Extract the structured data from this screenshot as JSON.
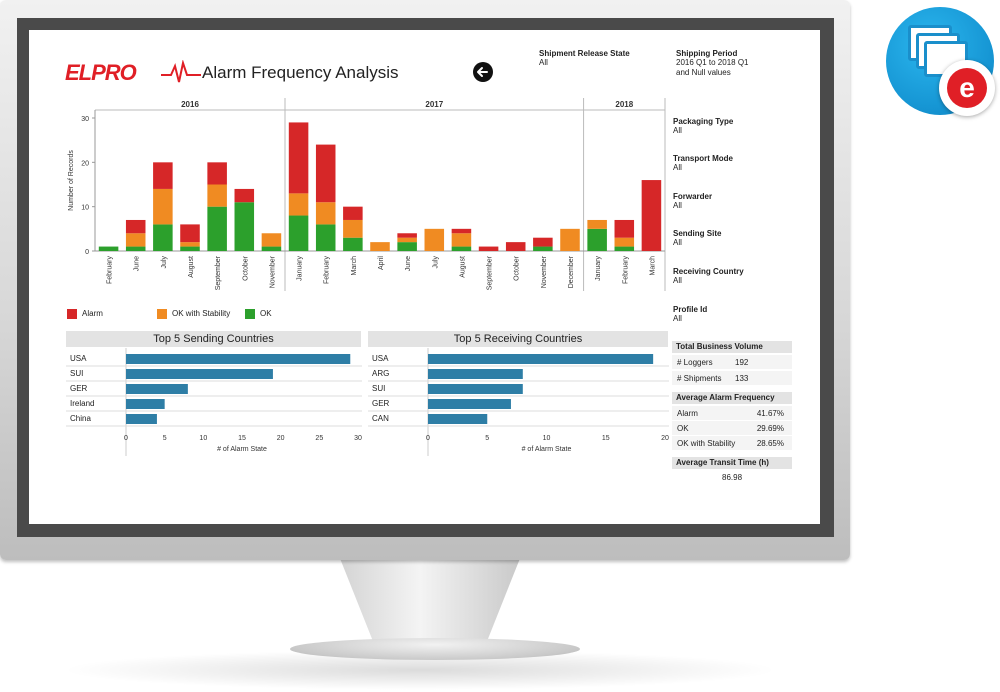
{
  "header": {
    "logo_text": "ELPRO",
    "title": "Alarm Frequency Analysis"
  },
  "filters_top": [
    {
      "label": "Shipment Release State",
      "value": "All"
    },
    {
      "label": "Shipping Period",
      "value": "2016 Q1 to 2018 Q1 and Null values"
    }
  ],
  "filters_side": [
    {
      "label": "Packaging Type",
      "value": "All"
    },
    {
      "label": "Transport Mode",
      "value": "All"
    },
    {
      "label": "Forwarder",
      "value": "All"
    },
    {
      "label": "Sending Site",
      "value": "All"
    },
    {
      "label": "Receiving Country",
      "value": "All"
    },
    {
      "label": "Profile Id",
      "value": "All"
    }
  ],
  "colors": {
    "alarm": "#d62728",
    "ok_stability": "#f08b22",
    "ok": "#2ca02c",
    "bar_blue": "#2e7ea6",
    "badge_blue": "#1696d4",
    "logo_red": "#e01f26"
  },
  "icons": {
    "back": "arrow-left-circle-icon",
    "badge": "folders-icon"
  },
  "chart_data": [
    {
      "type": "bar",
      "stacked": true,
      "ylabel": "Number of Records",
      "ylim": [
        0,
        30
      ],
      "yticks": [
        "0",
        "10",
        "20",
        "30"
      ],
      "year_groups": [
        {
          "label": "2016",
          "span": 7
        },
        {
          "label": "2017",
          "span": 11
        },
        {
          "label": "2018",
          "span": 3
        }
      ],
      "categories": [
        "February",
        "June",
        "July",
        "August",
        "September",
        "October",
        "November",
        "January",
        "February",
        "March",
        "April",
        "June",
        "July",
        "August",
        "September",
        "October",
        "November",
        "December",
        "January",
        "February",
        "March"
      ],
      "series": [
        {
          "name": "Alarm",
          "color": "#d62728",
          "values": [
            0,
            3,
            6,
            4,
            5,
            3,
            0,
            16,
            13,
            3,
            0,
            1,
            0,
            1,
            1,
            2,
            2,
            0,
            0,
            4,
            16
          ]
        },
        {
          "name": "OK with Stability",
          "color": "#f08b22",
          "values": [
            0,
            3,
            8,
            1,
            5,
            0,
            3,
            5,
            5,
            4,
            2,
            1,
            5,
            3,
            0,
            0,
            0,
            5,
            2,
            2,
            0
          ]
        },
        {
          "name": "OK",
          "color": "#2ca02c",
          "values": [
            1,
            1,
            6,
            1,
            10,
            11,
            1,
            8,
            6,
            3,
            0,
            2,
            0,
            1,
            0,
            0,
            1,
            0,
            5,
            1,
            0
          ]
        }
      ],
      "legend_position": "bottom-left"
    },
    {
      "type": "bar",
      "orientation": "horizontal",
      "title": "Top 5 Sending Countries",
      "xlabel": "# of Alarm State",
      "xlim": [
        0,
        30
      ],
      "xticks": [
        "0",
        "5",
        "10",
        "15",
        "20",
        "25",
        "30"
      ],
      "categories": [
        "USA",
        "SUI",
        "GER",
        "Ireland",
        "China"
      ],
      "values": [
        29,
        19,
        8,
        5,
        4
      ]
    },
    {
      "type": "bar",
      "orientation": "horizontal",
      "title": "Top 5 Receiving Countries",
      "xlabel": "# of Alarm State",
      "xlim": [
        0,
        20
      ],
      "xticks": [
        "0",
        "5",
        "10",
        "15",
        "20"
      ],
      "categories": [
        "USA",
        "ARG",
        "SUI",
        "GER",
        "CAN"
      ],
      "values": [
        19,
        8,
        8,
        7,
        5
      ]
    }
  ],
  "stats": {
    "business_volume": {
      "title": "Total Business Volume",
      "rows": [
        {
          "label": "# Loggers",
          "value": "192"
        },
        {
          "label": "# Shipments",
          "value": "133"
        }
      ]
    },
    "alarm_frequency": {
      "title": "Average Alarm Frequency",
      "rows": [
        {
          "label": "Alarm",
          "value": "41.67%"
        },
        {
          "label": "OK",
          "value": "29.69%"
        },
        {
          "label": "OK with Stability",
          "value": "28.65%"
        }
      ]
    },
    "transit_time": {
      "title": "Average Transit Time (h)",
      "value": "86.98"
    }
  }
}
